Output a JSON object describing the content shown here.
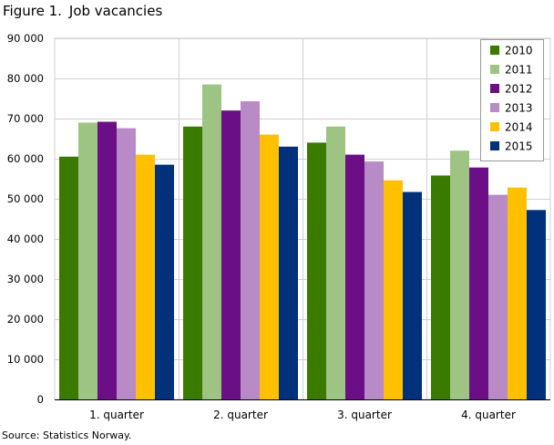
{
  "figure": {
    "label": "Figure 1.",
    "title": "Job vacancies",
    "source": "Source: Statistics Norway."
  },
  "chart_data": {
    "type": "bar",
    "title": "Job vacancies",
    "xlabel": "",
    "ylabel": "",
    "ylim": [
      0,
      90000
    ],
    "yticks": [
      0,
      10000,
      20000,
      30000,
      40000,
      50000,
      60000,
      70000,
      80000,
      90000
    ],
    "ytick_labels": [
      "0",
      "10 000",
      "20 000",
      "30 000",
      "40 000",
      "50 000",
      "60 000",
      "70 000",
      "80 000",
      "90 000"
    ],
    "grid": true,
    "legend_position": "top-right",
    "categories": [
      "1. quarter",
      "2. quarter",
      "3. quarter",
      "4. quarter"
    ],
    "series": [
      {
        "name": "2010",
        "color": "#3a7a00",
        "values": [
          60500,
          68000,
          64000,
          55800
        ]
      },
      {
        "name": "2011",
        "color": "#9dc483",
        "values": [
          69000,
          78500,
          68000,
          62000
        ]
      },
      {
        "name": "2012",
        "color": "#6a0f86",
        "values": [
          69200,
          72000,
          61000,
          57800
        ]
      },
      {
        "name": "2013",
        "color": "#b98bc6",
        "values": [
          67600,
          74300,
          59300,
          51000
        ]
      },
      {
        "name": "2014",
        "color": "#ffc000",
        "values": [
          61000,
          66000,
          54600,
          52800
        ]
      },
      {
        "name": "2015",
        "color": "#00317a",
        "values": [
          58500,
          63000,
          51700,
          47200
        ]
      }
    ]
  }
}
